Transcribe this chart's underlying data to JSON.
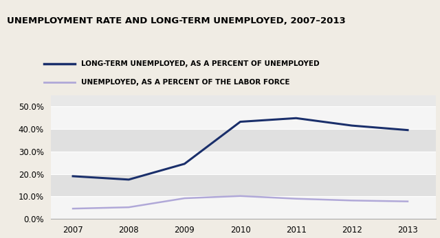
{
  "title": "UNEMPLOYMENT RATE AND LONG-TERM UNEMPLOYED, 2007–2013",
  "years": [
    2007,
    2008,
    2009,
    2010,
    2011,
    2012,
    2013
  ],
  "long_term_unemployed": [
    0.19,
    0.175,
    0.245,
    0.432,
    0.448,
    0.415,
    0.395
  ],
  "unemployed_labor_force": [
    0.046,
    0.052,
    0.092,
    0.102,
    0.09,
    0.082,
    0.078
  ],
  "line1_color": "#1a2f6b",
  "line2_color": "#b0a8d8",
  "line1_label": "LONG-TERM UNEMPLOYED, AS A PERCENT OF UNEMPLOYED",
  "line2_label": "UNEMPLOYED, AS A PERCENT OF THE LABOR FORCE",
  "plot_bg_color": "#e8e8e8",
  "outer_bg_color": "#f0ece4",
  "band_light": "#f5f5f5",
  "band_dark": "#e0e0e0",
  "separator_color": "#8899aa",
  "ylim": [
    0.0,
    0.55
  ],
  "yticks": [
    0.0,
    0.1,
    0.2,
    0.3,
    0.4,
    0.5
  ],
  "title_fontsize": 9.5,
  "legend_fontsize": 7.5,
  "tick_fontsize": 8.5
}
